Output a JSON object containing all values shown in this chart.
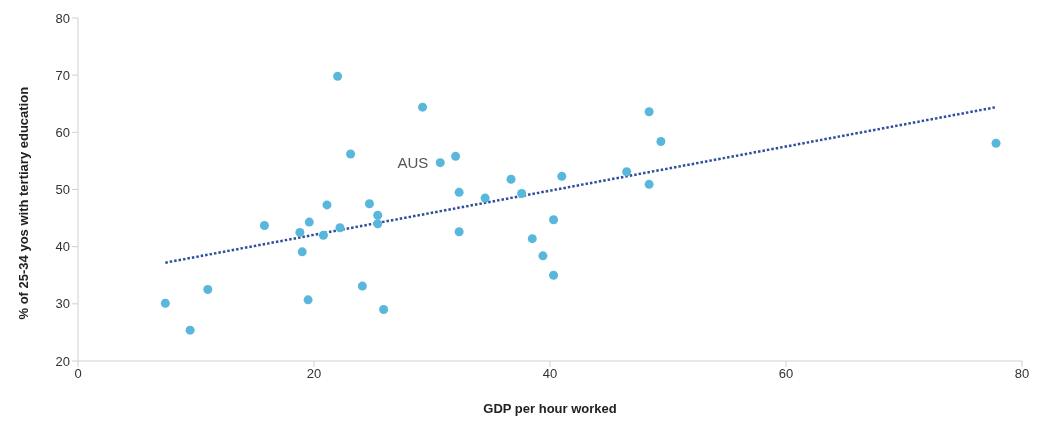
{
  "chart_data": {
    "type": "scatter",
    "xlabel": "GDP per hour worked",
    "ylabel": "% of 25-34 yos with tertiary education",
    "xlim": [
      0,
      80
    ],
    "xticks": [
      0,
      20,
      40,
      60,
      80
    ],
    "ylim": [
      20,
      80
    ],
    "yticks": [
      20,
      30,
      40,
      50,
      60,
      70,
      80
    ],
    "series": [
      {
        "marker": "circle",
        "color": "#5ab7dc",
        "x": [
          7.4,
          9.5,
          11.0,
          15.8,
          18.8,
          19.0,
          19.6,
          19.5,
          21.1,
          20.8,
          22.2,
          22.0,
          23.1,
          24.1,
          24.7,
          25.4,
          25.4,
          25.9,
          29.2,
          30.7,
          32.0,
          32.3,
          32.3,
          34.5,
          36.7,
          37.6,
          41.0,
          40.3,
          38.5,
          39.4,
          40.3,
          46.5,
          48.4,
          49.4,
          48.4,
          77.8
        ],
        "values": [
          30.1,
          25.4,
          32.5,
          43.7,
          42.5,
          39.1,
          44.3,
          30.7,
          47.3,
          42.0,
          43.3,
          69.8,
          56.2,
          33.1,
          47.5,
          45.5,
          44.0,
          29.0,
          64.4,
          54.7,
          55.8,
          49.5,
          42.6,
          48.5,
          51.8,
          49.3,
          52.3,
          44.7,
          41.4,
          38.4,
          35.0,
          53.1,
          63.6,
          58.4,
          50.9,
          58.1
        ]
      },
      {
        "type": "line",
        "color": "#2e4f9c",
        "line_style": "dotted",
        "x": [
          7.4,
          77.8
        ],
        "values": [
          37.2,
          64.4
        ]
      }
    ],
    "annotations": [
      {
        "text": "AUS",
        "x": 30.7,
        "y": 54.7
      }
    ]
  }
}
